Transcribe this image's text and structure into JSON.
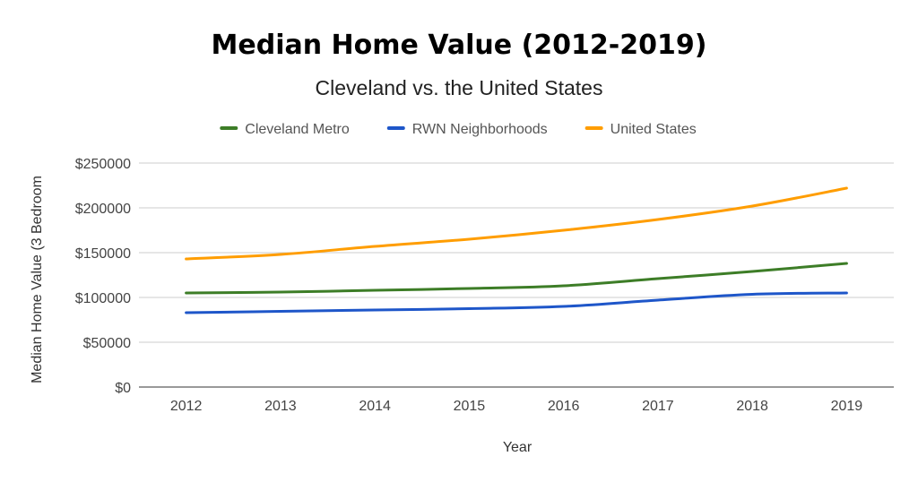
{
  "chart_data": {
    "type": "line",
    "title": "Median Home Value (2012-2019)",
    "subtitle": "Cleveland vs. the United States",
    "xlabel": "Year",
    "ylabel": "Median Home Value (3 Bedroom",
    "ylim": [
      0,
      250000
    ],
    "yticks": [
      0,
      50000,
      100000,
      150000,
      200000,
      250000
    ],
    "ytick_labels": [
      "$0",
      "$50000",
      "$100000",
      "$150000",
      "$200000",
      "$250000"
    ],
    "grid": true,
    "legend_position": "top-center",
    "categories": [
      "2012",
      "2013",
      "2014",
      "2015",
      "2016",
      "2017",
      "2018",
      "2019"
    ],
    "series": [
      {
        "name": "Cleveland Metro",
        "color": "#3d7d27",
        "values": [
          105000,
          106000,
          108000,
          110000,
          113000,
          121000,
          129000,
          138000
        ]
      },
      {
        "name": "RWN Neighborhoods",
        "color": "#1e56c9",
        "values": [
          83000,
          84500,
          86000,
          87500,
          90000,
          97000,
          103500,
          105000
        ]
      },
      {
        "name": "United States",
        "color": "#ff9d00",
        "values": [
          143000,
          148000,
          157000,
          165000,
          175000,
          187000,
          202000,
          222000
        ]
      }
    ]
  }
}
